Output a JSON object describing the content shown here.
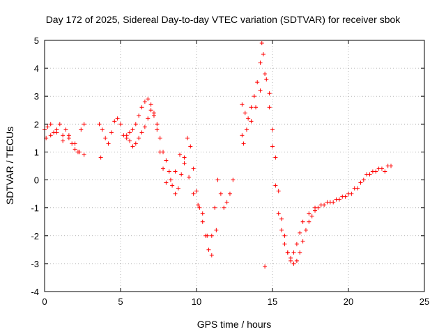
{
  "chart_data": {
    "type": "scatter",
    "title": "Day 172 of 2025, Sidereal Day-to-day VTEC variation (SDTVAR) for receiver sbok",
    "xlabel": "GPS time / hours",
    "ylabel": "SDTVAR / TECUs",
    "xlim": [
      0,
      25
    ],
    "ylim": [
      -4,
      5
    ],
    "xticks": [
      0,
      5,
      10,
      15,
      20,
      25
    ],
    "yticks": [
      -4,
      -3,
      -2,
      -1,
      0,
      1,
      2,
      3,
      4,
      5
    ],
    "grid": true,
    "marker": "+",
    "color": "#ff0000",
    "series": [
      {
        "name": "SDTVAR",
        "x": [
          0.0,
          0.2,
          0.4,
          0.6,
          0.8,
          1.0,
          1.2,
          1.4,
          1.6,
          1.8,
          2.0,
          2.2,
          2.4,
          2.6,
          0.1,
          0.4,
          0.8,
          1.2,
          1.6,
          2.0,
          2.3,
          2.6,
          3.6,
          3.8,
          4.0,
          4.2,
          4.4,
          4.6,
          4.8,
          5.0,
          5.2,
          5.4,
          5.6,
          5.8,
          6.0,
          6.2,
          6.4,
          6.6,
          6.8,
          7.0,
          7.2,
          7.4,
          7.6,
          7.8,
          8.0,
          8.2,
          8.4,
          8.6,
          8.8,
          9.0,
          9.2,
          9.4,
          9.6,
          9.8,
          10.0,
          10.2,
          10.4,
          10.6,
          10.8,
          11.0,
          11.2,
          11.4,
          11.6,
          11.8,
          12.0,
          12.2,
          12.4,
          5.4,
          5.6,
          5.8,
          6.0,
          6.2,
          6.4,
          6.6,
          6.8,
          7.0,
          7.2,
          7.4,
          7.6,
          7.8,
          8.0,
          8.3,
          8.6,
          8.9,
          9.2,
          9.5,
          9.8,
          10.1,
          10.4,
          10.7,
          11.0,
          11.3,
          13.0,
          13.2,
          13.4,
          13.6,
          13.8,
          14.0,
          14.2,
          14.3,
          14.4,
          14.6,
          14.8,
          15.0,
          15.2,
          15.4,
          15.6,
          15.8,
          16.0,
          16.2,
          16.4,
          16.6,
          16.8,
          17.0,
          17.2,
          17.4,
          17.6,
          17.8,
          18.0,
          18.4,
          18.8,
          19.2,
          19.6,
          20.0,
          20.4,
          20.8,
          21.2,
          21.6,
          22.0,
          22.4,
          22.8,
          13.0,
          13.3,
          13.6,
          13.9,
          14.2,
          14.5,
          14.8,
          15.0,
          15.2,
          15.4,
          15.6,
          15.8,
          16.0,
          16.2,
          16.4,
          16.6,
          16.8,
          17.0,
          17.4,
          17.8,
          18.2,
          18.6,
          19.0,
          19.4,
          19.8,
          20.2,
          20.6,
          21.0,
          21.4,
          21.8,
          22.2,
          22.6,
          14.5,
          3.7,
          13.1
        ],
        "y": [
          1.8,
          1.9,
          2.0,
          1.7,
          1.8,
          2.0,
          1.6,
          1.8,
          1.5,
          1.3,
          1.1,
          1.0,
          1.8,
          2.0,
          1.5,
          1.6,
          1.7,
          1.4,
          1.6,
          1.3,
          1.0,
          0.9,
          2.0,
          1.8,
          1.5,
          1.3,
          1.7,
          2.1,
          2.2,
          2.0,
          1.6,
          1.5,
          1.7,
          1.8,
          2.0,
          2.3,
          2.6,
          2.8,
          2.9,
          2.7,
          2.4,
          2.0,
          1.5,
          1.0,
          0.7,
          0.3,
          -0.2,
          -0.5,
          -0.3,
          0.2,
          0.8,
          1.5,
          1.2,
          0.4,
          -0.4,
          -1.0,
          -1.5,
          -2.0,
          -2.5,
          -2.0,
          -1.0,
          0.0,
          -0.5,
          -1.0,
          -0.8,
          -0.5,
          0.0,
          1.6,
          1.4,
          1.2,
          1.3,
          1.5,
          1.7,
          1.9,
          2.2,
          2.5,
          2.3,
          1.8,
          1.0,
          0.4,
          -0.1,
          0.0,
          0.3,
          0.9,
          0.6,
          0.1,
          -0.5,
          -0.9,
          -1.2,
          -2.0,
          -2.7,
          -1.8,
          2.7,
          2.4,
          2.2,
          2.6,
          3.0,
          3.5,
          4.2,
          4.9,
          4.5,
          3.6,
          2.6,
          1.2,
          -0.2,
          -1.2,
          -1.8,
          -2.3,
          -2.6,
          -2.8,
          -3.0,
          -2.9,
          -2.6,
          -2.2,
          -1.8,
          -1.5,
          -1.3,
          -1.1,
          -1.0,
          -0.9,
          -0.8,
          -0.7,
          -0.6,
          -0.5,
          -0.3,
          -0.1,
          0.2,
          0.3,
          0.4,
          0.3,
          0.5,
          1.6,
          1.8,
          2.1,
          2.6,
          3.2,
          3.8,
          3.1,
          1.8,
          0.8,
          -0.4,
          -1.4,
          -2.0,
          -2.6,
          -2.9,
          -2.6,
          -2.3,
          -1.9,
          -1.5,
          -1.2,
          -1.0,
          -0.9,
          -0.8,
          -0.8,
          -0.7,
          -0.6,
          -0.5,
          -0.3,
          0.0,
          0.2,
          0.3,
          0.4,
          0.5,
          -3.1,
          0.8,
          1.3
        ]
      }
    ]
  }
}
